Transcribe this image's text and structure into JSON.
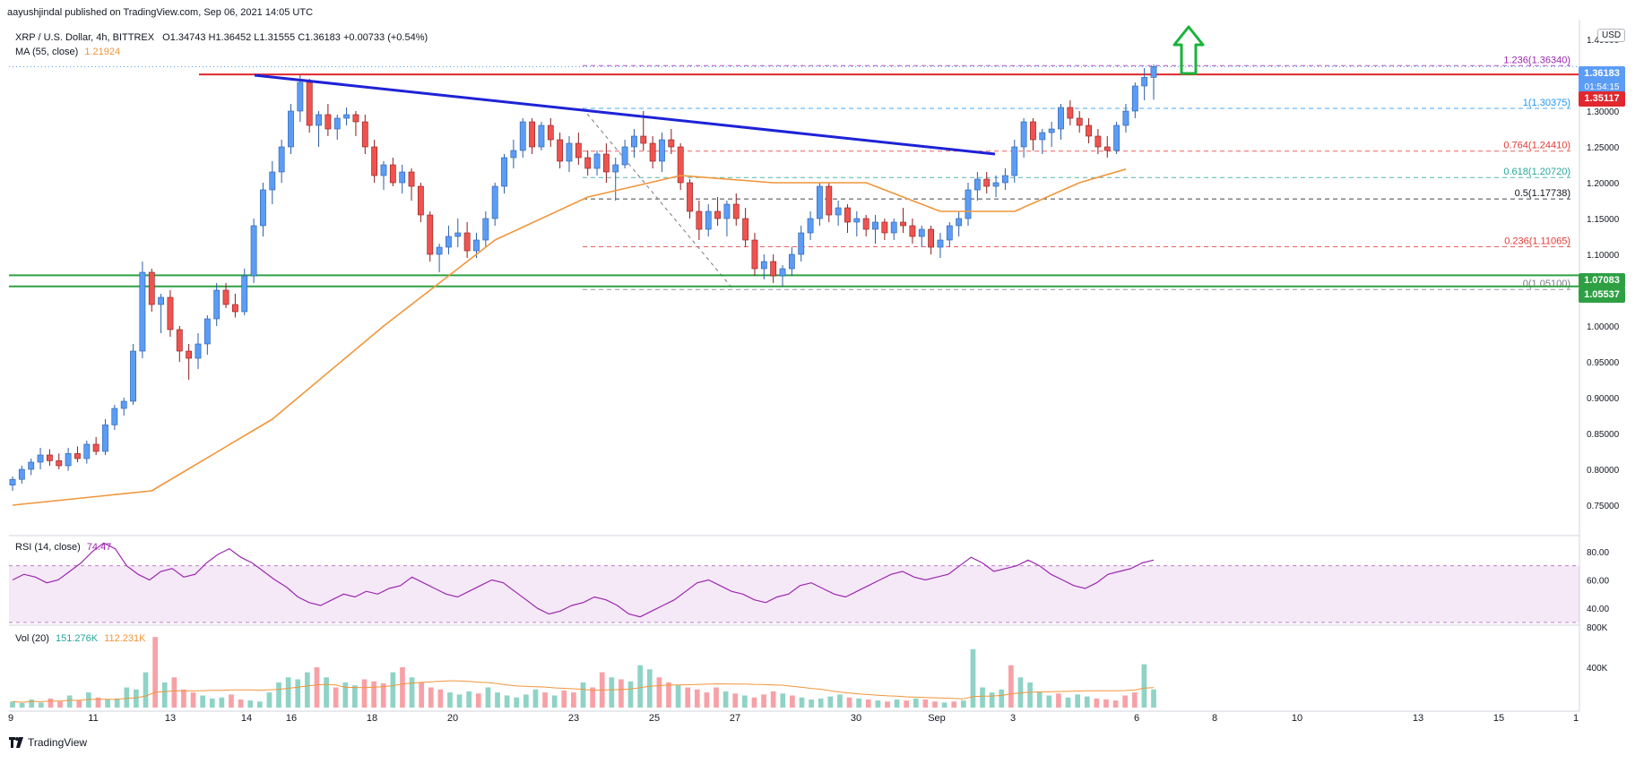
{
  "header": {
    "publisher_line": "aayushjindal published on TradingView.com, Sep 06, 2021 14:05 UTC"
  },
  "symbol_legend": {
    "pair": "XRP / U.S. Dollar, 4h, BITTREX",
    "ohlc": "O1.34743 H1.36452 L1.31555 C1.36183 +0.00733 (+0.54%)"
  },
  "ma_legend": {
    "label": "MA (55, close)",
    "value": "1.21924"
  },
  "rsi_legend": {
    "label": "RSI (14, close)",
    "value": "74.47"
  },
  "vol_legend": {
    "label": "Vol (20)",
    "value1": "151.276K",
    "value2": "112.231K"
  },
  "currency_button": "USD",
  "price_boxes": {
    "last_price": "1.36183",
    "countdown": "01:54:15",
    "resistance": "1.35117",
    "support_top": "1.07083",
    "support_bottom": "1.05537"
  },
  "brand": "TradingView",
  "colors": {
    "bull": "#5b9cf6",
    "bear": "#ef5350",
    "ma": "#f0953a",
    "trend": "#1e22d6",
    "resistance": "#e0282e",
    "support": "#2ea043",
    "rsi": "#9c27b0",
    "arrow": "#19b33a"
  },
  "chart_data": [
    {
      "type": "candlestick",
      "title": "XRP / U.S. Dollar, 4h, BITTREX",
      "ylim": [
        0.71,
        1.42
      ],
      "y_ticks": [
        "1.40000",
        "1.35000",
        "1.30000",
        "1.25000",
        "1.20000",
        "1.15000",
        "1.10000",
        "1.05000",
        "1.00000",
        "0.95000",
        "0.90000",
        "0.85000",
        "0.80000",
        "0.75000"
      ],
      "x_ticks": [
        "9",
        "11",
        "13",
        "14",
        "16",
        "18",
        "20",
        "23",
        "25",
        "27",
        "30",
        "Sep",
        "3",
        "6",
        "8",
        "10",
        "13",
        "15",
        "1"
      ],
      "candles_ohlc": [
        [
          0.778,
          0.79,
          0.77,
          0.786
        ],
        [
          0.786,
          0.805,
          0.78,
          0.8
        ],
        [
          0.8,
          0.815,
          0.792,
          0.81
        ],
        [
          0.81,
          0.83,
          0.8,
          0.82
        ],
        [
          0.82,
          0.828,
          0.805,
          0.812
        ],
        [
          0.812,
          0.822,
          0.8,
          0.805
        ],
        [
          0.805,
          0.83,
          0.798,
          0.822
        ],
        [
          0.822,
          0.832,
          0.81,
          0.815
        ],
        [
          0.815,
          0.84,
          0.808,
          0.835
        ],
        [
          0.835,
          0.845,
          0.82,
          0.825
        ],
        [
          0.825,
          0.87,
          0.82,
          0.862
        ],
        [
          0.862,
          0.89,
          0.855,
          0.885
        ],
        [
          0.885,
          0.9,
          0.875,
          0.895
        ],
        [
          0.895,
          0.975,
          0.89,
          0.965
        ],
        [
          0.965,
          1.09,
          0.955,
          1.075
        ],
        [
          1.075,
          1.08,
          1.02,
          1.03
        ],
        [
          1.03,
          1.045,
          0.99,
          1.04
        ],
        [
          1.04,
          1.05,
          0.985,
          0.995
        ],
        [
          0.995,
          1.0,
          0.95,
          0.965
        ],
        [
          0.965,
          0.975,
          0.925,
          0.955
        ],
        [
          0.955,
          0.99,
          0.94,
          0.975
        ],
        [
          0.975,
          1.015,
          0.96,
          1.01
        ],
        [
          1.01,
          1.06,
          1.0,
          1.05
        ],
        [
          1.05,
          1.06,
          1.025,
          1.03
        ],
        [
          1.03,
          1.045,
          1.012,
          1.02
        ],
        [
          1.02,
          1.08,
          1.015,
          1.07
        ],
        [
          1.07,
          1.15,
          1.06,
          1.14
        ],
        [
          1.14,
          1.2,
          1.125,
          1.19
        ],
        [
          1.19,
          1.23,
          1.17,
          1.215
        ],
        [
          1.215,
          1.26,
          1.2,
          1.25
        ],
        [
          1.25,
          1.31,
          1.24,
          1.3
        ],
        [
          1.3,
          1.35,
          1.285,
          1.34
        ],
        [
          1.34,
          1.345,
          1.27,
          1.28
        ],
        [
          1.28,
          1.3,
          1.25,
          1.295
        ],
        [
          1.295,
          1.31,
          1.265,
          1.275
        ],
        [
          1.275,
          1.295,
          1.26,
          1.29
        ],
        [
          1.29,
          1.305,
          1.28,
          1.295
        ],
        [
          1.295,
          1.3,
          1.265,
          1.285
        ],
        [
          1.285,
          1.295,
          1.24,
          1.25
        ],
        [
          1.25,
          1.26,
          1.2,
          1.21
        ],
        [
          1.21,
          1.23,
          1.19,
          1.225
        ],
        [
          1.225,
          1.235,
          1.195,
          1.2
        ],
        [
          1.2,
          1.225,
          1.185,
          1.215
        ],
        [
          1.215,
          1.22,
          1.175,
          1.195
        ],
        [
          1.195,
          1.2,
          1.145,
          1.155
        ],
        [
          1.155,
          1.16,
          1.09,
          1.1
        ],
        [
          1.1,
          1.115,
          1.075,
          1.11
        ],
        [
          1.11,
          1.14,
          1.1,
          1.125
        ],
        [
          1.125,
          1.15,
          1.11,
          1.13
        ],
        [
          1.13,
          1.145,
          1.095,
          1.105
        ],
        [
          1.105,
          1.13,
          1.095,
          1.12
        ],
        [
          1.12,
          1.16,
          1.11,
          1.15
        ],
        [
          1.15,
          1.2,
          1.14,
          1.195
        ],
        [
          1.195,
          1.24,
          1.185,
          1.235
        ],
        [
          1.235,
          1.26,
          1.22,
          1.245
        ],
        [
          1.245,
          1.29,
          1.235,
          1.285
        ],
        [
          1.285,
          1.29,
          1.24,
          1.25
        ],
        [
          1.25,
          1.285,
          1.245,
          1.28
        ],
        [
          1.28,
          1.29,
          1.25,
          1.26
        ],
        [
          1.26,
          1.27,
          1.22,
          1.23
        ],
        [
          1.23,
          1.265,
          1.215,
          1.255
        ],
        [
          1.255,
          1.27,
          1.225,
          1.235
        ],
        [
          1.235,
          1.245,
          1.21,
          1.22
        ],
        [
          1.22,
          1.245,
          1.21,
          1.24
        ],
        [
          1.24,
          1.255,
          1.2,
          1.215
        ],
        [
          1.215,
          1.235,
          1.175,
          1.225
        ],
        [
          1.225,
          1.26,
          1.22,
          1.25
        ],
        [
          1.25,
          1.275,
          1.235,
          1.265
        ],
        [
          1.265,
          1.3,
          1.245,
          1.255
        ],
        [
          1.255,
          1.265,
          1.22,
          1.23
        ],
        [
          1.23,
          1.27,
          1.215,
          1.26
        ],
        [
          1.26,
          1.275,
          1.24,
          1.25
        ],
        [
          1.25,
          1.255,
          1.19,
          1.2
        ],
        [
          1.2,
          1.205,
          1.15,
          1.16
        ],
        [
          1.16,
          1.175,
          1.12,
          1.135
        ],
        [
          1.135,
          1.17,
          1.125,
          1.16
        ],
        [
          1.16,
          1.18,
          1.14,
          1.15
        ],
        [
          1.15,
          1.175,
          1.125,
          1.17
        ],
        [
          1.17,
          1.185,
          1.14,
          1.15
        ],
        [
          1.15,
          1.165,
          1.11,
          1.12
        ],
        [
          1.12,
          1.13,
          1.07,
          1.08
        ],
        [
          1.08,
          1.1,
          1.065,
          1.09
        ],
        [
          1.09,
          1.1,
          1.06,
          1.07
        ],
        [
          1.07,
          1.085,
          1.055,
          1.08
        ],
        [
          1.08,
          1.11,
          1.07,
          1.1
        ],
        [
          1.1,
          1.14,
          1.09,
          1.13
        ],
        [
          1.13,
          1.16,
          1.12,
          1.15
        ],
        [
          1.15,
          1.2,
          1.14,
          1.195
        ],
        [
          1.195,
          1.2,
          1.145,
          1.155
        ],
        [
          1.155,
          1.175,
          1.14,
          1.165
        ],
        [
          1.165,
          1.17,
          1.13,
          1.145
        ],
        [
          1.145,
          1.16,
          1.125,
          1.15
        ],
        [
          1.15,
          1.155,
          1.125,
          1.135
        ],
        [
          1.135,
          1.155,
          1.115,
          1.145
        ],
        [
          1.145,
          1.15,
          1.12,
          1.13
        ],
        [
          1.13,
          1.15,
          1.12,
          1.145
        ],
        [
          1.145,
          1.165,
          1.13,
          1.14
        ],
        [
          1.14,
          1.15,
          1.115,
          1.125
        ],
        [
          1.125,
          1.14,
          1.11,
          1.135
        ],
        [
          1.135,
          1.14,
          1.1,
          1.11
        ],
        [
          1.11,
          1.13,
          1.095,
          1.12
        ],
        [
          1.12,
          1.145,
          1.11,
          1.14
        ],
        [
          1.14,
          1.16,
          1.125,
          1.15
        ],
        [
          1.15,
          1.2,
          1.14,
          1.19
        ],
        [
          1.19,
          1.215,
          1.175,
          1.205
        ],
        [
          1.205,
          1.215,
          1.185,
          1.195
        ],
        [
          1.195,
          1.21,
          1.18,
          1.2
        ],
        [
          1.2,
          1.22,
          1.19,
          1.21
        ],
        [
          1.21,
          1.26,
          1.2,
          1.25
        ],
        [
          1.25,
          1.29,
          1.235,
          1.285
        ],
        [
          1.285,
          1.29,
          1.245,
          1.26
        ],
        [
          1.26,
          1.275,
          1.24,
          1.27
        ],
        [
          1.27,
          1.285,
          1.25,
          1.275
        ],
        [
          1.275,
          1.31,
          1.26,
          1.305
        ],
        [
          1.305,
          1.315,
          1.28,
          1.29
        ],
        [
          1.29,
          1.3,
          1.27,
          1.28
        ],
        [
          1.28,
          1.29,
          1.255,
          1.265
        ],
        [
          1.265,
          1.275,
          1.24,
          1.25
        ],
        [
          1.25,
          1.265,
          1.235,
          1.245
        ],
        [
          1.245,
          1.285,
          1.24,
          1.28
        ],
        [
          1.28,
          1.31,
          1.27,
          1.3
        ],
        [
          1.3,
          1.34,
          1.29,
          1.335
        ],
        [
          1.335,
          1.36,
          1.315,
          1.347
        ],
        [
          1.347,
          1.365,
          1.316,
          1.362
        ]
      ],
      "ma_55": [
        [
          0,
          0.75
        ],
        [
          15,
          0.77
        ],
        [
          28,
          0.87
        ],
        [
          40,
          1.0
        ],
        [
          52,
          1.12
        ],
        [
          62,
          1.18
        ],
        [
          72,
          1.21
        ],
        [
          82,
          1.2
        ],
        [
          92,
          1.2
        ],
        [
          100,
          1.16
        ],
        [
          108,
          1.16
        ],
        [
          115,
          1.2
        ],
        [
          120,
          1.219
        ]
      ],
      "trendline": {
        "start": [
          0,
          1.35
        ],
        "end": [
          98,
          1.24
        ]
      },
      "resistance_level": 1.35117,
      "support_levels": [
        1.07083,
        1.05537
      ],
      "fib_levels": [
        {
          "label": "1.236(1.36340)",
          "value": 1.3634,
          "color": "#9c27b0"
        },
        {
          "label": "1(1.30375)",
          "value": 1.30375,
          "color": "#2196f3"
        },
        {
          "label": "0.764(1.24410)",
          "value": 1.2441,
          "color": "#e53935"
        },
        {
          "label": "0.618(1.20720)",
          "value": 1.2072,
          "color": "#26a69a"
        },
        {
          "label": "0.5(1.17738)",
          "value": 1.17738,
          "color": "#131722"
        },
        {
          "label": "0.236(1.11065)",
          "value": 1.11065,
          "color": "#e53935"
        },
        {
          "label": "0(1.05100)",
          "value": 1.051,
          "color": "#787b86"
        }
      ]
    },
    {
      "type": "line",
      "title": "RSI (14, close)",
      "ylim": [
        30,
        90
      ],
      "y_ticks": [
        "80.00",
        "60.00",
        "40.00"
      ],
      "band": [
        30,
        70
      ],
      "values": [
        60,
        64,
        62,
        58,
        60,
        66,
        72,
        80,
        86,
        82,
        70,
        64,
        60,
        66,
        68,
        62,
        64,
        72,
        78,
        82,
        76,
        72,
        66,
        60,
        55,
        48,
        44,
        42,
        46,
        50,
        48,
        52,
        50,
        54,
        56,
        62,
        58,
        54,
        50,
        48,
        52,
        56,
        60,
        58,
        52,
        46,
        40,
        36,
        38,
        42,
        44,
        48,
        46,
        42,
        36,
        34,
        38,
        42,
        46,
        52,
        58,
        60,
        56,
        52,
        50,
        46,
        44,
        48,
        50,
        56,
        58,
        54,
        50,
        48,
        52,
        56,
        60,
        64,
        66,
        62,
        60,
        62,
        64,
        70,
        76,
        72,
        66,
        68,
        70,
        74,
        70,
        64,
        60,
        56,
        54,
        58,
        64,
        66,
        68,
        72,
        74
      ]
    },
    {
      "type": "bar",
      "title": "Vol (20)",
      "y_ticks": [
        "800K",
        "400K"
      ],
      "ylim": [
        0,
        800
      ],
      "values": [
        60,
        45,
        80,
        50,
        90,
        60,
        120,
        70,
        150,
        100,
        80,
        90,
        200,
        180,
        350,
        700,
        250,
        300,
        180,
        150,
        120,
        90,
        100,
        130,
        80,
        70,
        60,
        150,
        250,
        300,
        280,
        350,
        400,
        300,
        200,
        250,
        220,
        280,
        260,
        240,
        350,
        400,
        300,
        250,
        200,
        180,
        150,
        130,
        160,
        140,
        200,
        150,
        120,
        100,
        130,
        180,
        150,
        120,
        170,
        150,
        250,
        200,
        350,
        300,
        280,
        260,
        420,
        380,
        300,
        250,
        220,
        200,
        180,
        150,
        200,
        160,
        140,
        120,
        100,
        130,
        160,
        140,
        120,
        100,
        80,
        90,
        110,
        130,
        100,
        90,
        80,
        70,
        60,
        80,
        70,
        90,
        80,
        60,
        50,
        60,
        70,
        580,
        200,
        150,
        180,
        420,
        300,
        250,
        160,
        120,
        140,
        100,
        130,
        110,
        90,
        80,
        70,
        120,
        150,
        430,
        180
      ]
    }
  ]
}
